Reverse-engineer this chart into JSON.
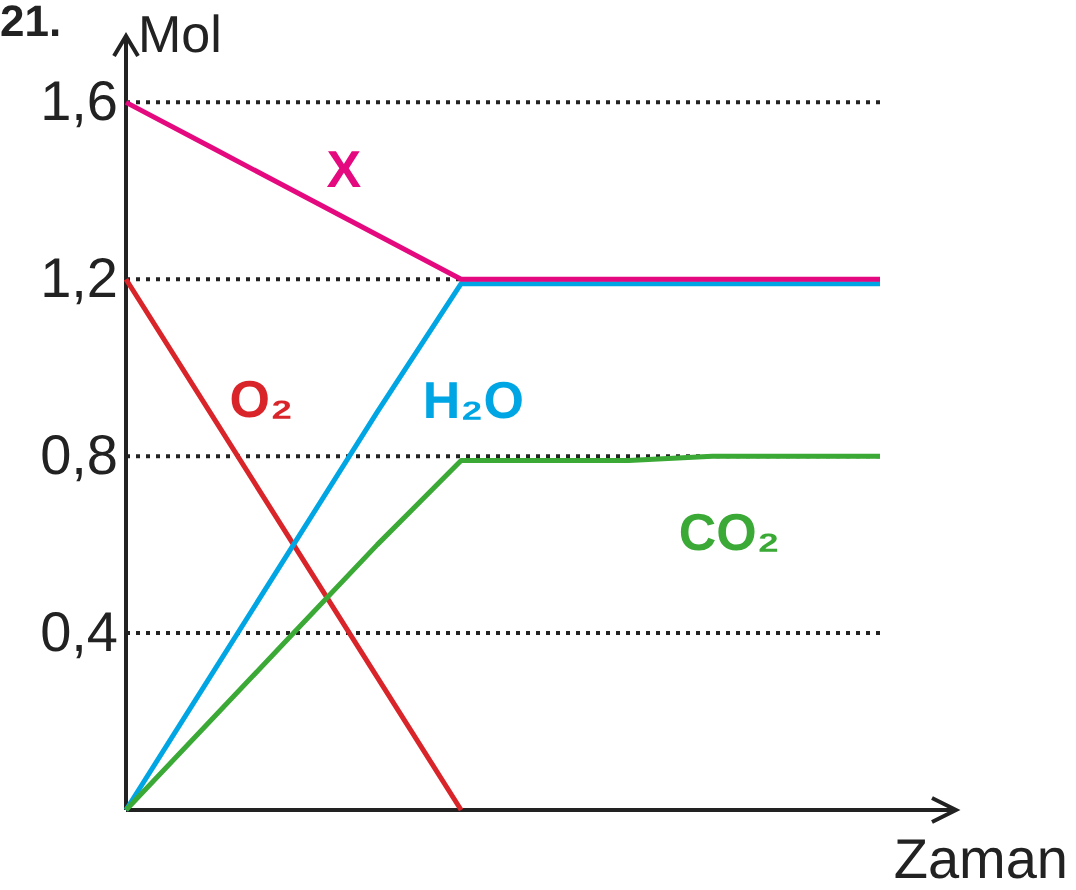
{
  "chart_data": {
    "type": "line",
    "xlabel": "Zaman",
    "ylabel": "Mol",
    "annotations": [
      "21."
    ],
    "categories": [
      null,
      null,
      null,
      null,
      null,
      null,
      null,
      null,
      null,
      null
    ],
    "ylim": [
      0,
      1.75
    ],
    "yticks": [
      {
        "value": 0.4,
        "label": "0,4"
      },
      {
        "value": 0.8,
        "label": "0,8"
      },
      {
        "value": 1.2,
        "label": "1,2"
      },
      {
        "value": 1.6,
        "label": "1,6"
      }
    ],
    "tick_labels": "y",
    "grid": "y",
    "marker": "none",
    "line_style": "solid",
    "series": [
      {
        "name": "O₂",
        "color": "#d9252a",
        "values": [
          1.2,
          0.9,
          0.6,
          0.3,
          0,
          null,
          null,
          null,
          null,
          null
        ]
      },
      {
        "name": "H₂O",
        "color": "#00a6e4",
        "values": [
          0,
          0.3,
          0.6,
          0.9,
          1.19,
          1.19,
          1.19,
          1.19,
          1.19,
          1.19
        ]
      },
      {
        "name": "CO₂",
        "color": "#3aa935",
        "values": [
          0,
          0.2,
          0.4,
          0.6,
          0.79,
          0.79,
          0.79,
          0.8,
          0.8,
          0.8
        ]
      },
      {
        "name": "X",
        "color": "#e5097f",
        "values": [
          1.6,
          1.5,
          1.4,
          1.3,
          1.2,
          1.2,
          1.2,
          1.2,
          1.2,
          1.2
        ]
      }
    ]
  }
}
